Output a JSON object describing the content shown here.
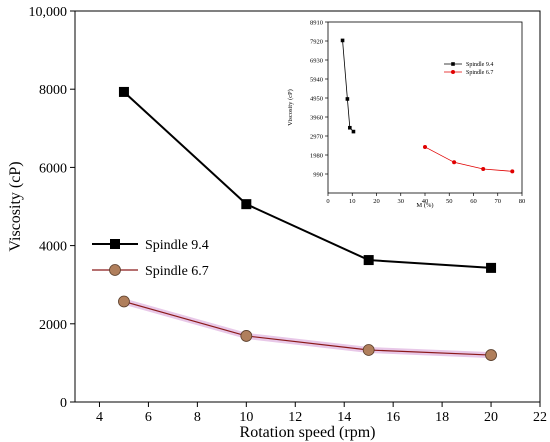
{
  "chart_data": [
    {
      "type": "line",
      "title": "",
      "xlabel": "Rotation speed (rpm)",
      "ylabel": "Viscosity (cP)",
      "xlim": [
        3,
        22
      ],
      "ylim": [
        0,
        10000
      ],
      "xticks": [
        "4",
        "6",
        "8",
        "10",
        "12",
        "14",
        "16",
        "18",
        "20",
        "22"
      ],
      "yticks": [
        "0",
        "2000",
        "4000",
        "6000",
        "8000",
        "10,000"
      ],
      "grid": false,
      "legend_position": "center-left",
      "series": [
        {
          "name": "Spindle 9.4",
          "color": "#000000",
          "marker": "square",
          "x": [
            5,
            10,
            15,
            20
          ],
          "values": [
            7930,
            5060,
            3630,
            3430
          ]
        },
        {
          "name": "Spindle 6.7",
          "color": "#8B1A1A",
          "marker": "circle",
          "marker_color": "#B07F5C",
          "x": [
            5,
            10,
            15,
            20
          ],
          "values": [
            2570,
            1690,
            1330,
            1200
          ]
        }
      ]
    },
    {
      "type": "scatter",
      "title": "",
      "xlabel": "M (%)",
      "ylabel": "Viscosity (cP)",
      "xlim": [
        0,
        80
      ],
      "ylim": [
        0,
        8910
      ],
      "xticks": [
        "0",
        "10",
        "20",
        "30",
        "40",
        "50",
        "60",
        "70",
        "80"
      ],
      "yticks": [
        "990",
        "1980",
        "2970",
        "3960",
        "4950",
        "5940",
        "6930",
        "7920",
        "8910"
      ],
      "grid": false,
      "legend_position": "top-right",
      "series": [
        {
          "name": "Spindle 9.4",
          "color": "#000000",
          "marker": "square",
          "x": [
            6,
            8,
            9,
            10.5
          ],
          "values": [
            7950,
            4900,
            3400,
            3200
          ]
        },
        {
          "name": "Spindle 6.7",
          "color": "#E00000",
          "marker": "circle",
          "x": [
            40,
            52,
            64,
            76
          ],
          "values": [
            2400,
            1600,
            1250,
            1130
          ]
        }
      ]
    }
  ]
}
